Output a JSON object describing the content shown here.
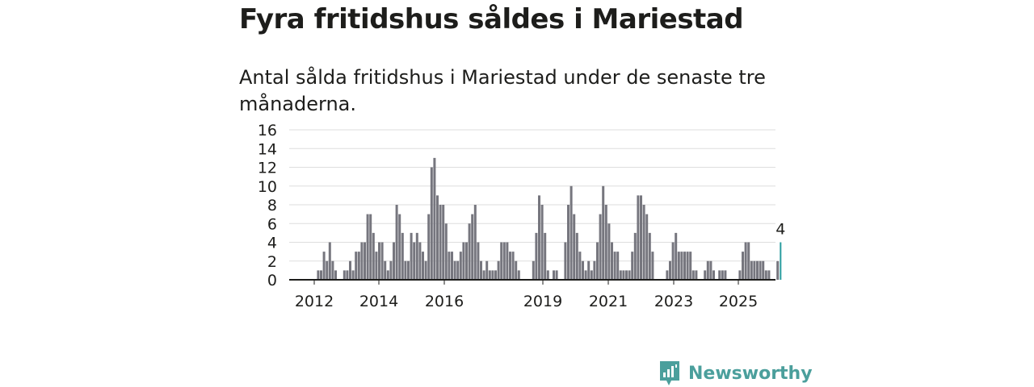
{
  "header": {
    "title": "Fyra fritidshus såldes i Mariestad",
    "subtitle": "Antal sålda fritidshus i Mariestad under de senaste tre månaderna."
  },
  "chart_data": {
    "type": "bar",
    "x_tick_labels": [
      "2012",
      "2014",
      "2016",
      "2019",
      "2021",
      "2023",
      "2025"
    ],
    "y_tick_labels": [
      "0",
      "2",
      "4",
      "6",
      "8",
      "10",
      "12",
      "14",
      "16"
    ],
    "ylim": [
      0,
      16
    ],
    "grid": true,
    "bar_color": "#76767e",
    "highlight_color": "#2a9d9f",
    "highlight_label": "4",
    "values": [
      0,
      0,
      0,
      0,
      0,
      0,
      0,
      0,
      0,
      1,
      1,
      3,
      2,
      4,
      2,
      1,
      0,
      0,
      1,
      1,
      2,
      1,
      3,
      3,
      4,
      4,
      7,
      7,
      5,
      3,
      4,
      4,
      2,
      1,
      2,
      4,
      8,
      7,
      5,
      2,
      2,
      5,
      4,
      5,
      4,
      3,
      2,
      7,
      12,
      13,
      9,
      8,
      8,
      6,
      3,
      3,
      2,
      2,
      3,
      4,
      4,
      6,
      7,
      8,
      4,
      2,
      1,
      2,
      1,
      1,
      1,
      2,
      4,
      4,
      4,
      3,
      3,
      2,
      1,
      0,
      0,
      0,
      0,
      2,
      5,
      9,
      8,
      5,
      1,
      0,
      1,
      1,
      0,
      0,
      4,
      8,
      10,
      7,
      5,
      3,
      2,
      1,
      2,
      1,
      2,
      4,
      7,
      10,
      8,
      6,
      4,
      3,
      3,
      1,
      1,
      1,
      1,
      3,
      5,
      9,
      9,
      8,
      7,
      5,
      3,
      0,
      0,
      0,
      0,
      1,
      2,
      4,
      5,
      3,
      3,
      3,
      3,
      3,
      1,
      1,
      0,
      0,
      1,
      2,
      2,
      1,
      0,
      1,
      1,
      1,
      0,
      0,
      0,
      0,
      1,
      3,
      4,
      4,
      2,
      2,
      2,
      2,
      2,
      1,
      1,
      0,
      0,
      2,
      4
    ]
  },
  "brand": {
    "name": "Newsworthy",
    "color": "#4b9f9c"
  }
}
